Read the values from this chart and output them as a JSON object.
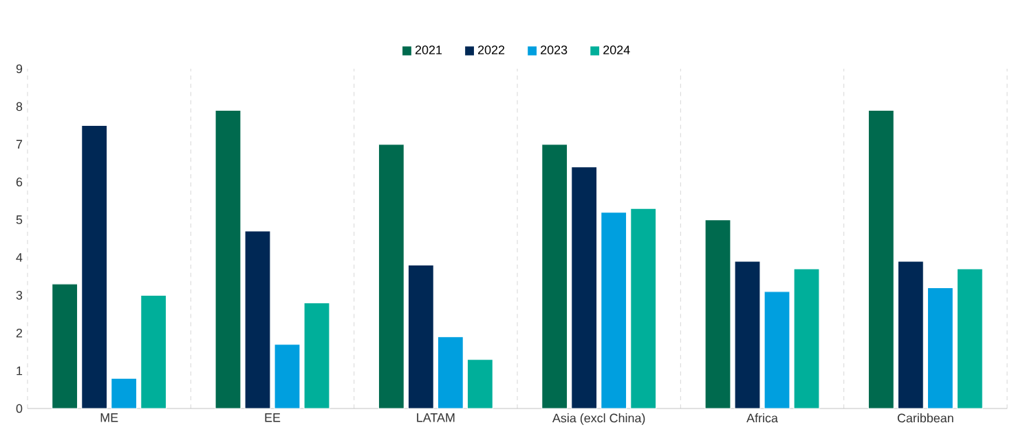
{
  "chart_data": {
    "type": "bar",
    "categories": [
      "ME",
      "EE",
      "LATAM",
      "Asia (excl China)",
      "Africa",
      "Caribbean"
    ],
    "series": [
      {
        "name": "2021",
        "color": "#006a4e",
        "values": [
          3.3,
          7.9,
          7.0,
          7.0,
          5.0,
          7.9
        ]
      },
      {
        "name": "2022",
        "color": "#002855",
        "values": [
          7.5,
          4.7,
          3.8,
          6.4,
          3.9,
          3.9
        ]
      },
      {
        "name": "2023",
        "color": "#009fdf",
        "values": [
          0.8,
          1.7,
          1.9,
          5.2,
          3.1,
          3.2
        ]
      },
      {
        "name": "2024",
        "color": "#00af9a",
        "values": [
          3.0,
          2.8,
          1.3,
          5.3,
          3.7,
          3.7
        ]
      }
    ],
    "ylim": [
      0,
      9
    ],
    "yticks": [
      0,
      1,
      2,
      3,
      4,
      5,
      6,
      7,
      8,
      9
    ],
    "grid": "x",
    "legend": "top"
  }
}
